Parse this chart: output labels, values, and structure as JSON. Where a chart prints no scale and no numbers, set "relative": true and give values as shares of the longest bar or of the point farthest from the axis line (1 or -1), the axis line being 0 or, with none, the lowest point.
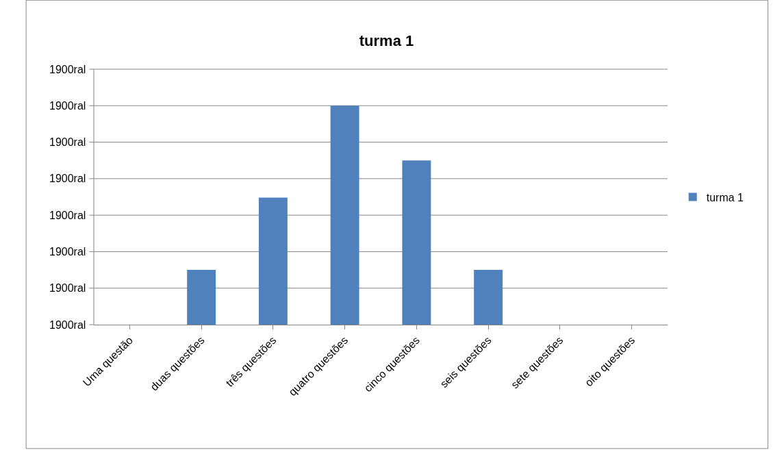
{
  "chart_data": {
    "type": "bar",
    "title": "turma 1",
    "relative": true,
    "categories": [
      "Uma questão",
      "duas questões",
      "três questões",
      "quatro questões",
      "cinco questões",
      "seis questões",
      "sete questões",
      "oito questões"
    ],
    "series": [
      {
        "name": "turma 1",
        "color": "#4f81bd",
        "values": [
          0,
          0.25,
          0.58,
          1,
          0.75,
          0.25,
          0,
          0
        ]
      }
    ],
    "annotations": [
      "1900ral",
      "1900ral",
      "1900ral",
      "1900ral",
      "1900ral",
      "1900ral",
      "1900ral",
      "1900ral"
    ],
    "grid": "y",
    "legend": "right"
  }
}
